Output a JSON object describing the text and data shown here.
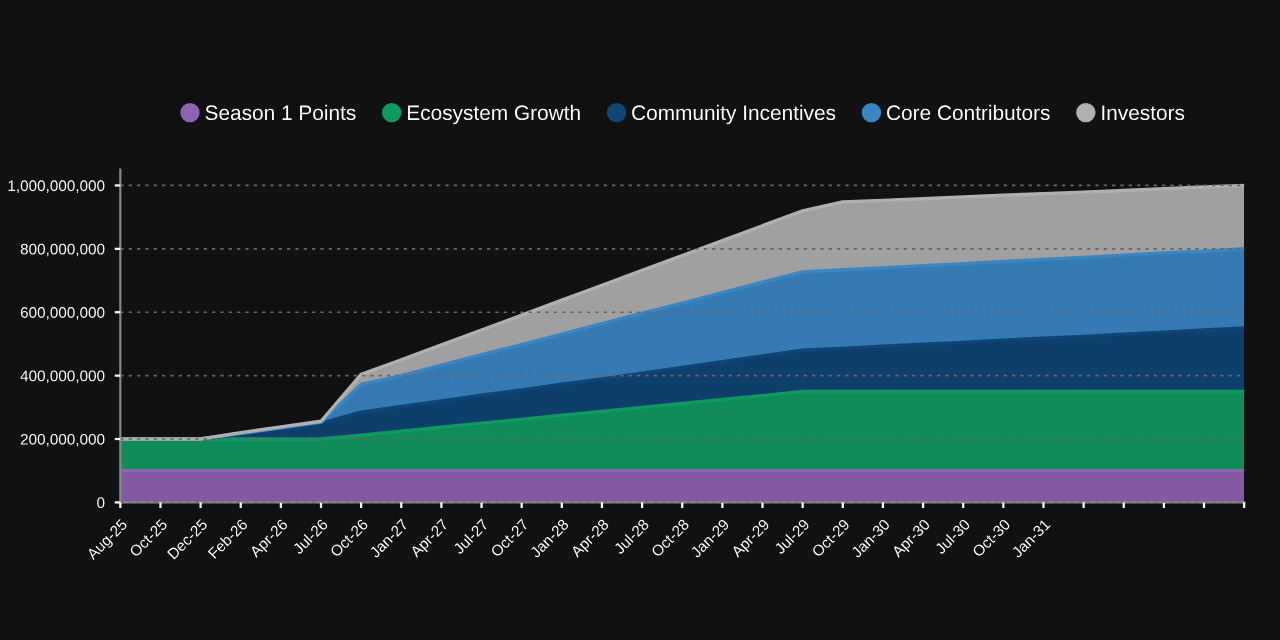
{
  "chart_data": {
    "type": "area",
    "stacked": true,
    "legend": "top",
    "grid": "y",
    "marker": "none",
    "line_style": "solid",
    "categories": [
      "Aug-25",
      "Oct-25",
      "Dec-25",
      "Feb-26",
      "Apr-26",
      "Jul-26",
      "Oct-26",
      "Jan-27",
      "Apr-27",
      "Jul-27",
      "Oct-27",
      "Jan-28",
      "Apr-28",
      "Jul-28",
      "Oct-28",
      "Jan-29",
      "Apr-29",
      "Jul-29",
      "Oct-29",
      "Jan-30",
      "Apr-30",
      "Jul-30",
      "Oct-30",
      "Jan-31",
      null,
      null,
      null,
      null,
      null
    ],
    "ylim": [
      0,
      1050000000.0
    ],
    "yticks": [
      0,
      {
        "value": 200000000.0,
        "label": "200,000,000"
      },
      {
        "value": 400000000.0,
        "label": "400,000,000"
      },
      {
        "value": 600000000.0,
        "label": "600,000,000"
      },
      {
        "value": 800000000.0,
        "label": "800,000,000"
      },
      {
        "value": 1000000000.0,
        "label": "1,000,000,000"
      }
    ],
    "series": [
      {
        "name": "Season 1 Points",
        "color": "#8e63b3",
        "values": [
          100000000.0,
          100000000.0,
          100000000.0,
          100000000.0,
          100000000.0,
          100000000.0,
          100000000.0,
          100000000.0,
          100000000.0,
          100000000.0,
          100000000.0,
          100000000.0,
          100000000.0,
          100000000.0,
          100000000.0,
          100000000.0,
          100000000.0,
          100000000.0,
          100000000.0,
          100000000.0,
          100000000.0,
          100000000.0,
          100000000.0,
          100000000.0,
          100000000.0,
          100000000.0,
          100000000.0,
          100000000.0,
          100000000.0
        ]
      },
      {
        "name": "Ecosystem Growth",
        "color": "#0f9a60",
        "values": [
          100000000.0,
          100000000.0,
          100000000.0,
          100000000.0,
          100000000.0,
          100000000.0,
          112000000.0,
          125000000.0,
          137000000.0,
          150000000.0,
          162000000.0,
          175000000.0,
          187000000.0,
          200000000.0,
          212000000.0,
          225000000.0,
          237000000.0,
          250000000.0,
          250000000.0,
          250000000.0,
          250000000.0,
          250000000.0,
          250000000.0,
          250000000.0,
          250000000.0,
          250000000.0,
          250000000.0,
          250000000.0,
          250000000.0
        ]
      },
      {
        "name": "Community Incentives",
        "color": "#0e4576",
        "values": [
          0,
          0,
          0,
          15000000.0,
          30000000.0,
          50000000.0,
          73000000.0,
          78000000.0,
          83000000.0,
          88000000.0,
          93000000.0,
          98000000.0,
          103000000.0,
          108000000.0,
          114000000.0,
          119000000.0,
          125000000.0,
          130000000.0,
          136000000.0,
          143000000.0,
          149000000.0,
          155000000.0,
          162000000.0,
          168000000.0,
          174000000.0,
          181000000.0,
          187000000.0,
          194000000.0,
          200000000.0
        ]
      },
      {
        "name": "Core Contributors",
        "color": "#3a86c4",
        "values": [
          0,
          0,
          0,
          3000000.0,
          5000000.0,
          3000000.0,
          87000000.0,
          97000000.0,
          113000000.0,
          128000000.0,
          143000000.0,
          158000000.0,
          174000000.0,
          189000000.0,
          203000000.0,
          218000000.0,
          233000000.0,
          247000000.0,
          248000000.0,
          247000000.0,
          248000000.0,
          248000000.0,
          248000000.0,
          249000000.0,
          249000000.0,
          249000000.0,
          250000000.0,
          249000000.0,
          250000000.0
        ]
      },
      {
        "name": "Investors",
        "color": "#b0b0b0",
        "values": [
          0,
          0,
          0,
          2000000.0,
          3000000.0,
          3000000.0,
          32000000.0,
          50000000.0,
          64000000.0,
          78000000.0,
          93000000.0,
          107000000.0,
          121000000.0,
          135000000.0,
          150000000.0,
          164000000.0,
          178000000.0,
          193000000.0,
          214000000.0,
          213000000.0,
          211000000.0,
          211000000.0,
          209000000.0,
          207000000.0,
          206000000.0,
          204000000.0,
          203000000.0,
          202000000.0,
          200000000.0
        ]
      }
    ]
  }
}
